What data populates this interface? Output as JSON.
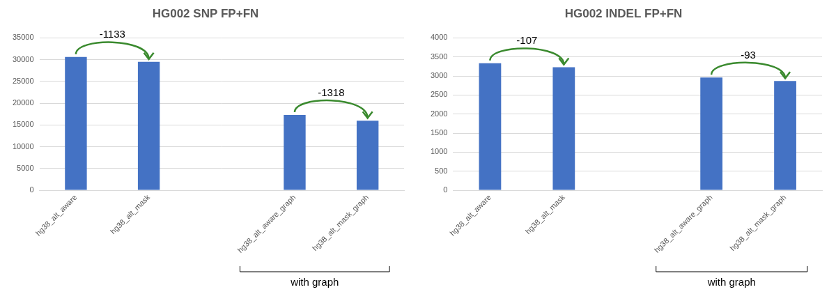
{
  "chart_data": [
    {
      "type": "bar",
      "title": "HG002 SNP FP+FN",
      "categories": [
        "hg38_alt_aware",
        "hg38_alt_mask",
        null,
        "hg38_alt_aware_graph",
        "hg38_alt_mask_graph"
      ],
      "values": [
        30620,
        29487,
        null,
        17280,
        15962
      ],
      "color": "#4472c4",
      "ylim": [
        0,
        35000
      ],
      "yticks": [
        0,
        5000,
        10000,
        15000,
        20000,
        25000,
        30000,
        35000
      ],
      "grid": true,
      "annotations": [
        {
          "text": "-1133",
          "from": "hg38_alt_aware",
          "to": "hg38_alt_mask"
        },
        {
          "text": "-1318",
          "from": "hg38_alt_aware_graph",
          "to": "hg38_alt_mask_graph"
        }
      ],
      "group_label": {
        "text": "with graph",
        "categories": [
          "hg38_alt_aware_graph",
          "hg38_alt_mask_graph"
        ]
      }
    },
    {
      "type": "bar",
      "title": "HG002 INDEL FP+FN",
      "categories": [
        "hg38_alt_aware",
        "hg38_alt_mask",
        null,
        "hg38_alt_aware_graph",
        "hg38_alt_mask_graph"
      ],
      "values": [
        3335,
        3228,
        null,
        2960,
        2867
      ],
      "color": "#4472c4",
      "ylim": [
        0,
        4000
      ],
      "yticks": [
        0,
        500,
        1000,
        1500,
        2000,
        2500,
        3000,
        3500,
        4000
      ],
      "grid": true,
      "annotations": [
        {
          "text": "-107",
          "from": "hg38_alt_aware",
          "to": "hg38_alt_mask"
        },
        {
          "text": "-93",
          "from": "hg38_alt_aware_graph",
          "to": "hg38_alt_mask_graph"
        }
      ],
      "group_label": {
        "text": "with graph",
        "categories": [
          "hg38_alt_aware_graph",
          "hg38_alt_mask_graph"
        ]
      }
    }
  ]
}
